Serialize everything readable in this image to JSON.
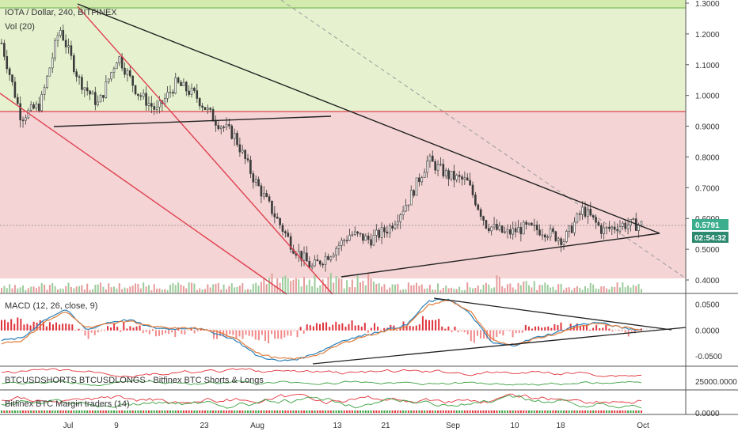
{
  "header": {
    "symbol_title": "IOTA / Dollar, 240, BITFINEX",
    "volume_label": "Vol (20)",
    "macd_label": "MACD (12, 26, close, 9)",
    "shorts_label": "BTCUSDSHORTS BTCUSDLONGS - Bitfinex BTC Shorts & Longs",
    "margin_label": "Bitfinex BTC Margin traders (14)"
  },
  "price_tag": {
    "value": "0.5791",
    "countdown": "02:54:32"
  },
  "colors": {
    "green_zone": "#e6f2cf",
    "red_zone": "#f4d4d4",
    "up_candle": "#3a3a3a",
    "down_candle": "#3a3a3a",
    "support_red": "#e04050",
    "trendline": "#222222",
    "price_tag_bg": "#3cae8e",
    "macd_line": "#2980b9",
    "signal_line": "#e07b39",
    "hist_red": "#e0343c",
    "shorts_line": "#e0343c",
    "longs_line": "#3aa040"
  },
  "chart_data": [
    {
      "type": "line",
      "title": "IOTA / Dollar, 240, BITFINEX",
      "x_ticks": [
        "Jul",
        "9",
        "23",
        "Aug",
        "13",
        "21",
        "Sep",
        "10",
        "18",
        "Oct"
      ],
      "y_ticks": [
        "1.3000",
        "1.2000",
        "1.1000",
        "1.0000",
        "0.9000",
        "0.8000",
        "0.7000",
        "0.6000",
        "0.5000",
        "0.4000"
      ],
      "ylim": [
        0.4,
        1.3
      ],
      "series": [
        {
          "name": "",
          "x": [
            "Jun 25",
            "Jun 29",
            "Jul 3",
            "Jul 6",
            "Jul 9",
            "Jul 13",
            "Jul 16",
            "Jul 20",
            "Jul 23",
            "Jul 27",
            "Jul 30",
            "Aug 2",
            "Aug 5",
            "Aug 7",
            "Aug 9",
            "Aug 11",
            "Aug 13",
            "Aug 15",
            "Aug 18",
            "Aug 21",
            "Aug 24",
            "Aug 27",
            "Aug 29",
            "Aug 31",
            "Sep 3",
            "Sep 6",
            "Sep 9",
            "Sep 12",
            "Sep 15",
            "Sep 18",
            "Sep 21",
            "Sep 24",
            "Sep 27",
            "Sep 30"
          ],
          "values": [
            1.17,
            0.93,
            0.97,
            1.22,
            1.05,
            0.97,
            1.13,
            1.01,
            0.95,
            1.04,
            1.0,
            0.92,
            0.87,
            0.73,
            0.62,
            0.51,
            0.44,
            0.49,
            0.55,
            0.53,
            0.57,
            0.66,
            0.79,
            0.74,
            0.72,
            0.58,
            0.55,
            0.57,
            0.56,
            0.53,
            0.63,
            0.56,
            0.58,
            0.58
          ]
        }
      ],
      "annotations": [
        "descending trendline",
        "ascending trendline",
        "resistance 0.95"
      ]
    },
    {
      "type": "line",
      "title": "MACD (12, 26, close, 9)",
      "y_ticks": [
        "0.0500",
        "0.0000",
        "-0.0500"
      ],
      "ylim": [
        -0.065,
        0.06
      ],
      "series": [
        {
          "name": "",
          "values": [
            -0.02,
            -0.015,
            0.02,
            0.04,
            0.0,
            0.015,
            0.02,
            0.005,
            0.002,
            0.005,
            -0.005,
            -0.02,
            -0.05,
            -0.06,
            -0.055,
            -0.04,
            -0.02,
            -0.01,
            0.0,
            0.01,
            0.055,
            0.06,
            0.03,
            -0.025,
            -0.03,
            -0.015,
            -0.005,
            0.01,
            0.015,
            0.005,
            0.0
          ]
        },
        {
          "name": "",
          "values": [
            -0.025,
            -0.02,
            0.015,
            0.035,
            0.005,
            0.012,
            0.018,
            0.007,
            0.003,
            0.004,
            -0.003,
            -0.015,
            -0.045,
            -0.055,
            -0.055,
            -0.045,
            -0.025,
            -0.012,
            -0.002,
            0.008,
            0.048,
            0.058,
            0.035,
            -0.02,
            -0.028,
            -0.017,
            -0.007,
            0.007,
            0.013,
            0.006,
            0.001
          ]
        }
      ]
    },
    {
      "type": "line",
      "title": "BTCUSDSHORTS BTCUSDLONGS - Bitfinex BTC Shorts & Longs",
      "y_ticks": [
        "25000.0000"
      ]
    },
    {
      "type": "line",
      "title": "Bitfinex BTC Margin traders (14)",
      "y_ticks": [
        "0.0000"
      ]
    }
  ]
}
